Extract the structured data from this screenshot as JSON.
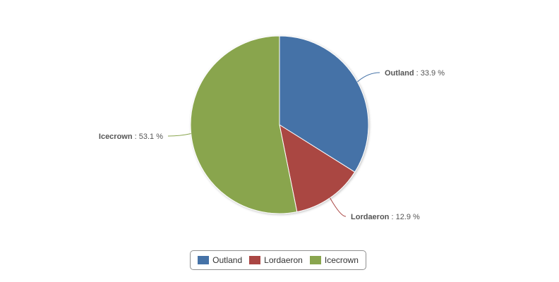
{
  "chart_data": {
    "type": "pie",
    "title": "",
    "slices": [
      {
        "name": "Outland",
        "value": 33.9,
        "color": "#4572A7"
      },
      {
        "name": "Lordaeron",
        "value": 12.9,
        "color": "#AA4643"
      },
      {
        "name": "Icecrown",
        "value": 53.1,
        "color": "#89A54E"
      }
    ],
    "label_separator": " : ",
    "label_suffix": " %",
    "legend_position": "bottom-center"
  }
}
